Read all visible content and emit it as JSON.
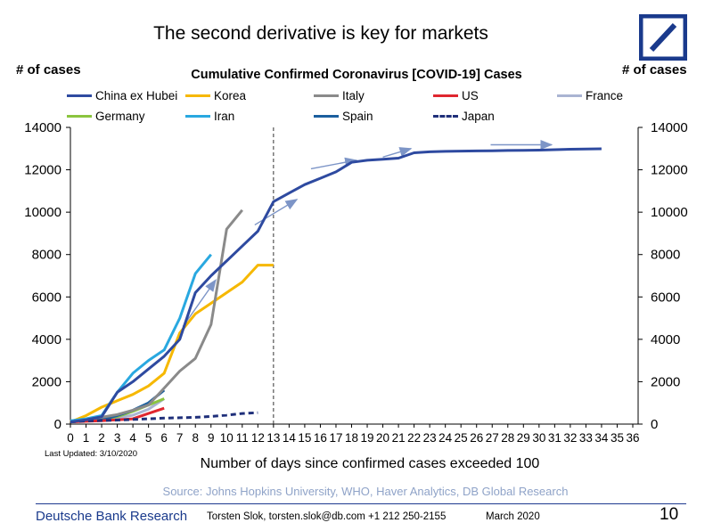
{
  "header": {
    "headline": "The second derivative is key for markets",
    "left_unit": "# of cases",
    "right_unit": "# of cases"
  },
  "chart_data": {
    "type": "line",
    "title": "Cumulative Confirmed Coronavirus [COVID-19] Cases",
    "xlabel": "Number of days since confirmed cases exceeded 100",
    "ylabel": "# of cases",
    "ylabel_right": "# of cases",
    "xlim": [
      0,
      36
    ],
    "ylim": [
      0,
      14000
    ],
    "x_ticks": [
      0,
      1,
      2,
      3,
      4,
      5,
      6,
      7,
      8,
      9,
      10,
      11,
      12,
      13,
      14,
      15,
      16,
      17,
      18,
      19,
      20,
      21,
      22,
      23,
      24,
      25,
      26,
      27,
      28,
      29,
      30,
      31,
      32,
      33,
      34,
      35,
      36
    ],
    "y_ticks": [
      0,
      2000,
      4000,
      6000,
      8000,
      10000,
      12000,
      14000
    ],
    "grid": false,
    "legend_position": "top",
    "marker_day": 13,
    "series": [
      {
        "name": "China ex Hubei",
        "color": "#2e4aa0",
        "dash": "solid",
        "x": [
          0,
          1,
          2,
          3,
          4,
          5,
          6,
          7,
          8,
          9,
          10,
          11,
          12,
          13,
          14,
          15,
          16,
          17,
          18,
          19,
          20,
          21,
          22,
          23,
          24,
          25,
          26,
          27,
          28,
          29,
          30,
          31,
          32,
          33,
          34
        ],
        "values": [
          100,
          200,
          350,
          1500,
          2000,
          2600,
          3200,
          4000,
          6200,
          7000,
          7700,
          8400,
          9100,
          10500,
          10900,
          11300,
          11600,
          11900,
          12350,
          12450,
          12500,
          12550,
          12800,
          12850,
          12870,
          12880,
          12890,
          12900,
          12910,
          12920,
          12930,
          12950,
          12970,
          12980,
          12990
        ]
      },
      {
        "name": "Korea",
        "color": "#f6b800",
        "dash": "solid",
        "x": [
          0,
          1,
          2,
          3,
          4,
          5,
          6,
          7,
          8,
          9,
          10,
          11,
          12,
          13
        ],
        "values": [
          100,
          400,
          800,
          1100,
          1400,
          1800,
          2400,
          4300,
          5200,
          5700,
          6200,
          6700,
          7500,
          7500
        ]
      },
      {
        "name": "Italy",
        "color": "#8a8a8a",
        "dash": "solid",
        "x": [
          0,
          1,
          2,
          3,
          4,
          5,
          6,
          7,
          8,
          9,
          10,
          11
        ],
        "values": [
          150,
          230,
          320,
          450,
          650,
          900,
          1700,
          2500,
          3100,
          4700,
          9200,
          10100
        ]
      },
      {
        "name": "US",
        "color": "#e0262f",
        "dash": "solid",
        "x": [
          0,
          1,
          2,
          3,
          4,
          5,
          6
        ],
        "values": [
          100,
          130,
          160,
          200,
          250,
          500,
          750
        ]
      },
      {
        "name": "France",
        "color": "#aab4d2",
        "dash": "solid",
        "x": [
          0,
          1,
          2,
          3,
          4,
          5,
          6
        ],
        "values": [
          100,
          190,
          210,
          290,
          420,
          700,
          1200
        ]
      },
      {
        "name": "Germany",
        "color": "#8bc53f",
        "dash": "solid",
        "x": [
          0,
          1,
          2,
          3,
          4,
          5,
          6
        ],
        "values": [
          120,
          160,
          250,
          350,
          600,
          900,
          1200
        ]
      },
      {
        "name": "Iran",
        "color": "#29a8e0",
        "dash": "solid",
        "x": [
          0,
          1,
          2,
          3,
          4,
          5,
          6,
          7,
          8,
          9
        ],
        "values": [
          150,
          250,
          400,
          1500,
          2400,
          3000,
          3500,
          5000,
          7100,
          8000
        ]
      },
      {
        "name": "Spain",
        "color": "#1b5f9e",
        "dash": "solid",
        "x": [
          0,
          1,
          2,
          3,
          4,
          5,
          6
        ],
        "values": [
          120,
          150,
          200,
          400,
          650,
          1000,
          1600
        ]
      },
      {
        "name": "Japan",
        "color": "#1f2f7a",
        "dash": "dashed",
        "x": [
          0,
          1,
          2,
          3,
          4,
          5,
          6,
          7,
          8,
          9,
          10,
          11,
          12
        ],
        "values": [
          100,
          150,
          170,
          190,
          220,
          250,
          280,
          300,
          320,
          360,
          420,
          500,
          540
        ]
      }
    ]
  },
  "footnote": {
    "updated": "Last Updated: 3/10/2020",
    "source": "Source: Johns Hopkins University, WHO, Haver Analytics, DB Global Research"
  },
  "footer": {
    "brand": "Deutsche Bank Research",
    "contact": "Torsten Slok, torsten.slok@db.com  +1 212 250-2155",
    "date": "March 2020",
    "page": "10"
  },
  "colors": {
    "brand_blue": "#1a3a8c",
    "arrow_blue": "#7d95c7",
    "source_text": "#8fa3c8"
  },
  "icons": {
    "logo": "deutsche-bank-logo-icon",
    "trend_arrows": "arrow-right-icon"
  }
}
